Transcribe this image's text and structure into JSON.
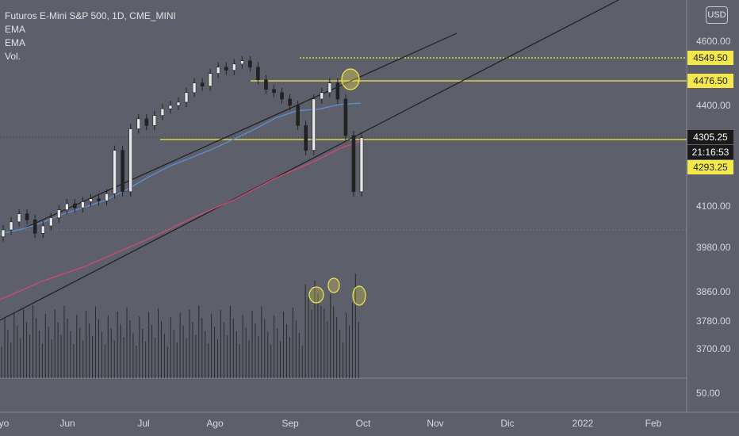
{
  "legend": {
    "title": "Futuros E-Mini S&P 500, 1D, CME_MINI",
    "ema1": "EMA",
    "ema2": "EMA",
    "vol": "Vol."
  },
  "currency_button": "USD",
  "price_axis": {
    "ticks": [
      {
        "value": 4600,
        "label": "4600.00"
      },
      {
        "value": 4400,
        "label": "4400.00"
      },
      {
        "value": 4100,
        "label": "4100.00"
      },
      {
        "value": 3980,
        "label": "3980.00"
      },
      {
        "value": 3860,
        "label": "3860.00"
      },
      {
        "value": 3780,
        "label": "3780.00"
      },
      {
        "value": 3700,
        "label": "3700.00"
      },
      {
        "value": 50,
        "label": "50.00"
      }
    ]
  },
  "price_tags": [
    {
      "label": "4549.50",
      "value": 4549.5,
      "style": "yellow"
    },
    {
      "label": "4476.50",
      "value": 4476.5,
      "style": "yellow"
    },
    {
      "label": "4305.25",
      "value": 4305.25,
      "style": "dark"
    },
    {
      "label": "21:16:53",
      "value": 4305.25,
      "style": "countdown"
    },
    {
      "label": "4293.25",
      "value": 4293.25,
      "style": "yellow"
    }
  ],
  "time_axis": {
    "labels": [
      "yo",
      "Jun",
      "Jul",
      "Ago",
      "Sep",
      "Oct",
      "Nov",
      "Dic",
      "2022",
      "Feb"
    ]
  },
  "chart_data": {
    "type": "candlestick",
    "symbol": "Futuros E-Mini S&P 500",
    "interval": "1D",
    "exchange": "CME_MINI",
    "ylim": [
      3660,
      4720
    ],
    "last_price": 4305.25,
    "countdown": "21:16:53",
    "horizontal_levels": [
      4549.5,
      4476.5,
      4293.25
    ],
    "series": [
      {
        "name": "EMA",
        "color": "#5b8fd6",
        "values": [
          3975,
          3990,
          4012,
          4040,
          4062,
          4085,
          4120,
          4160,
          4195,
          4222,
          4250,
          4282,
          4315,
          4352,
          4375,
          4380,
          4395,
          4400
        ]
      },
      {
        "name": "EMA",
        "color": "#d14a6e",
        "values": [
          3860,
          3885,
          3910,
          3930,
          3950,
          3975,
          4000,
          4025,
          4052,
          4080,
          4105,
          4130,
          4160,
          4190,
          4215,
          4240,
          4270,
          4290
        ]
      }
    ],
    "candles_close_approx": [
      4100,
      4140,
      4180,
      4150,
      4090,
      4120,
      4160,
      4200,
      4230,
      4210,
      4240,
      4255,
      4245,
      4280,
      4300,
      4290,
      4330,
      4360,
      4340,
      4370,
      4390,
      4400,
      4410,
      4440,
      4470,
      4460,
      4500,
      4520,
      4510,
      4530,
      4540,
      4520,
      4480,
      4450,
      4440,
      4420,
      4400,
      4340,
      4300,
      4420,
      4440,
      4470,
      4420,
      4310,
      4290,
      4305
    ],
    "trendlines": [
      "rising support channel",
      "rising upper channel"
    ],
    "annotations": [
      "circled high at 4476.50",
      "circled volume spikes (3)"
    ],
    "legend_position": "top-left"
  },
  "colors": {
    "background": "#5d606b",
    "level_line": "#f5e84a",
    "trendline": "#1e1e1e",
    "candle": "#222222",
    "volume": "#2a2a2a",
    "grid": "#7a7d87"
  }
}
